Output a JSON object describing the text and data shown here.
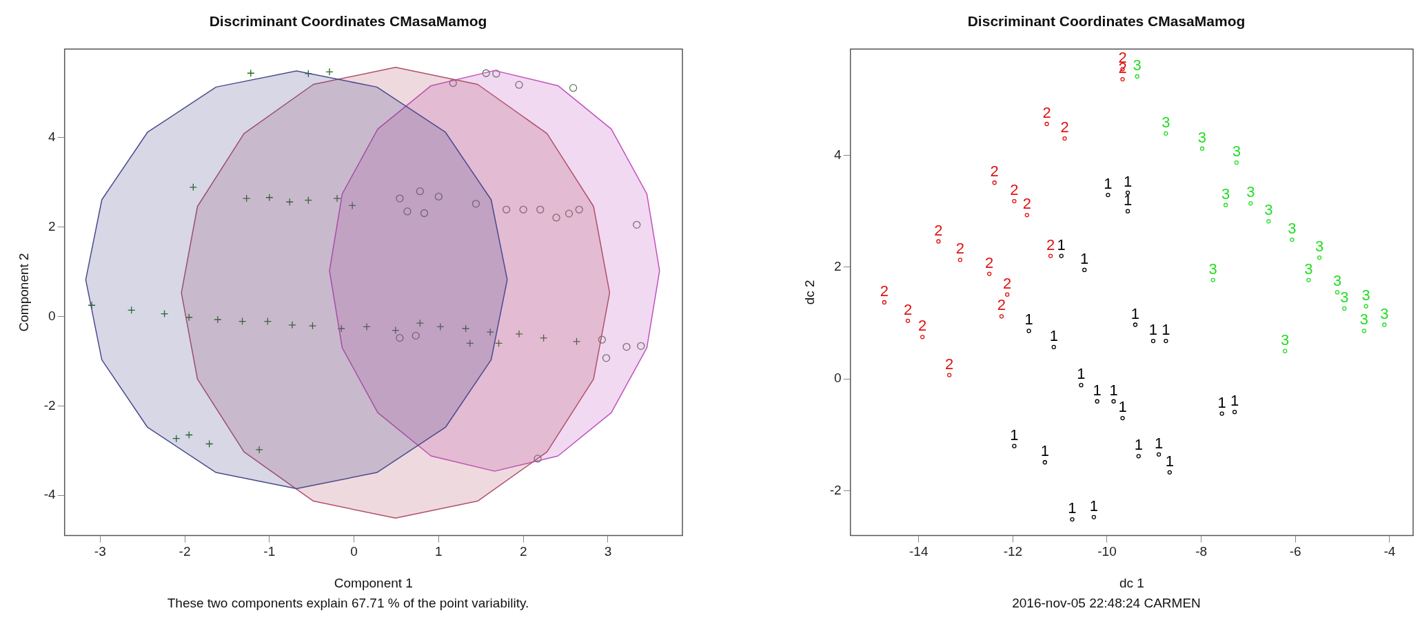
{
  "chart_data": [
    {
      "type": "scatter",
      "title": "Discriminant Coordinates CMasaMamog",
      "xlabel": "Component 1",
      "ylabel": "Component 2",
      "annotations": [
        "These two components explain 67.71 % of the point variability."
      ],
      "xlim": [
        -3.42,
        3.88
      ],
      "ylim": [
        -4.9,
        5.98
      ],
      "xticks": [
        -3,
        -2,
        -1,
        0,
        1,
        2,
        3
      ],
      "yticks": [
        -4,
        -2,
        0,
        2,
        4
      ],
      "grid": false,
      "legend": false,
      "series": [
        {
          "type": "area",
          "color": "#4a4a8c",
          "x": [
            1.81,
            1.62,
            1.08,
            0.27,
            -0.68,
            -1.63,
            -2.44,
            -2.98,
            -3.17,
            -2.98,
            -2.44,
            -1.63,
            -0.68,
            0.27,
            1.08,
            1.62,
            1.81
          ],
          "values": [
            0.82,
            2.61,
            4.12,
            5.13,
            5.49,
            5.13,
            4.12,
            2.61,
            0.82,
            -0.97,
            -2.48,
            -3.49,
            -3.85,
            -3.49,
            -2.48,
            -0.97,
            0.82
          ]
        },
        {
          "type": "area",
          "color": "#b0506a",
          "x": [
            3.02,
            2.83,
            2.28,
            1.46,
            0.49,
            -0.48,
            -1.3,
            -1.85,
            -2.04,
            -1.85,
            -1.3,
            -0.48,
            0.49,
            1.46,
            2.28,
            2.83,
            3.02
          ],
          "values": [
            0.53,
            2.46,
            4.09,
            5.19,
            5.57,
            5.19,
            4.09,
            2.46,
            0.53,
            -1.4,
            -3.03,
            -4.13,
            -4.51,
            -4.13,
            -3.03,
            -1.4,
            0.53
          ]
        },
        {
          "type": "area",
          "color": "#c050c0",
          "x": [
            3.61,
            3.46,
            3.04,
            2.41,
            1.66,
            0.91,
            0.28,
            -0.14,
            -0.29,
            -0.14,
            0.28,
            0.91,
            1.66,
            2.41,
            3.04,
            3.46,
            3.61
          ],
          "values": [
            1.02,
            2.74,
            4.19,
            5.16,
            5.5,
            5.16,
            4.19,
            2.74,
            1.02,
            -0.7,
            -2.15,
            -3.12,
            -3.46,
            -3.12,
            -2.15,
            -0.7,
            1.02
          ]
        },
        {
          "color": "#1a6b1a",
          "marker": "cross",
          "x": [
            -1.22,
            -0.54,
            -0.29,
            -1.9,
            -1.27,
            -1.0,
            -0.76,
            -0.54,
            -0.2,
            -0.02,
            -3.1,
            -2.1,
            -1.95,
            -1.71,
            -1.12,
            1.71,
            1.37,
            -2.63,
            -2.24,
            -1.95,
            -1.61,
            -1.32,
            -1.02,
            -0.73,
            -0.49,
            -0.15,
            0.15,
            0.49,
            0.78,
            1.02,
            1.32,
            1.61,
            1.95,
            2.24,
            2.63
          ],
          "values": [
            5.44,
            5.43,
            5.47,
            2.89,
            2.64,
            2.66,
            2.56,
            2.6,
            2.64,
            2.48,
            0.25,
            -2.73,
            -2.65,
            -2.85,
            -2.98,
            -0.6,
            -0.6,
            0.14,
            0.06,
            -0.02,
            -0.07,
            -0.11,
            -0.11,
            -0.19,
            -0.21,
            -0.27,
            -0.23,
            -0.31,
            -0.15,
            -0.23,
            -0.27,
            -0.35,
            -0.39,
            -0.48,
            -0.56
          ]
        },
        {
          "color": "#5f7a5f",
          "marker": "circle",
          "x": [
            1.56,
            1.68,
            1.17,
            1.95,
            2.59,
            0.54,
            0.78,
            1.0,
            1.44,
            1.8,
            2.0,
            2.2,
            2.39,
            2.54,
            2.66,
            3.34,
            2.93,
            3.22,
            3.39,
            2.17,
            0.63,
            0.83,
            0.54,
            0.73,
            2.98
          ],
          "values": [
            5.44,
            5.43,
            5.22,
            5.18,
            5.11,
            2.64,
            2.8,
            2.68,
            2.52,
            2.39,
            2.39,
            2.39,
            2.21,
            2.3,
            2.39,
            2.05,
            -0.52,
            -0.68,
            -0.66,
            -3.18,
            2.35,
            2.31,
            -0.48,
            -0.43,
            -0.93
          ]
        }
      ]
    },
    {
      "type": "scatter",
      "title": "Discriminant Coordinates CMasaMamog",
      "xlabel": "dc 1",
      "ylabel": "dc 2",
      "annotations": [
        "2016-nov-05 22:48:24 CARMEN"
      ],
      "xlim": [
        -15.45,
        -3.5
      ],
      "ylim": [
        -2.8,
        5.9
      ],
      "xticks": [
        -14,
        -12,
        -10,
        -8,
        -6,
        -4
      ],
      "yticks": [
        -2,
        0,
        2,
        4
      ],
      "grid": false,
      "legend": false,
      "marker": "circle",
      "series": [
        {
          "name": "1",
          "color": "#000000",
          "x": [
            -9.98,
            -9.56,
            -9.56,
            -10.97,
            -10.48,
            -11.66,
            -11.13,
            -9.4,
            -9.02,
            -8.75,
            -10.55,
            -10.21,
            -9.86,
            -9.67,
            -7.56,
            -7.29,
            -11.97,
            -11.32,
            -9.33,
            -8.9,
            -8.67,
            -10.74,
            -10.28
          ],
          "values": [
            3.29,
            3.33,
            3.0,
            2.2,
            1.95,
            0.86,
            0.57,
            0.97,
            0.68,
            0.68,
            -0.11,
            -0.4,
            -0.4,
            -0.7,
            -0.62,
            -0.59,
            -1.2,
            -1.49,
            -1.38,
            -1.35,
            -1.67,
            -2.51,
            -2.47
          ]
        },
        {
          "name": "2",
          "color": "#e01010",
          "x": [
            -9.67,
            -9.67,
            -11.28,
            -10.9,
            -12.39,
            -11.97,
            -11.7,
            -13.58,
            -13.12,
            -12.5,
            -12.12,
            -11.2,
            -14.73,
            -14.23,
            -13.92,
            -12.24,
            -13.35
          ],
          "values": [
            5.54,
            5.36,
            4.56,
            4.3,
            3.51,
            3.18,
            2.93,
            2.46,
            2.13,
            1.88,
            1.51,
            2.2,
            1.37,
            1.04,
            0.75,
            1.12,
            0.07
          ]
        },
        {
          "name": "3",
          "color": "#22dd22",
          "x": [
            -9.36,
            -8.75,
            -7.98,
            -7.25,
            -7.48,
            -6.95,
            -6.57,
            -6.07,
            -7.75,
            -5.49,
            -5.72,
            -5.11,
            -4.96,
            -4.5,
            -4.54,
            -4.11,
            -6.22
          ],
          "values": [
            5.41,
            4.39,
            4.12,
            3.87,
            3.11,
            3.14,
            2.82,
            2.49,
            1.77,
            2.17,
            1.77,
            1.55,
            1.26,
            1.3,
            0.86,
            0.97,
            0.5
          ]
        }
      ]
    }
  ]
}
